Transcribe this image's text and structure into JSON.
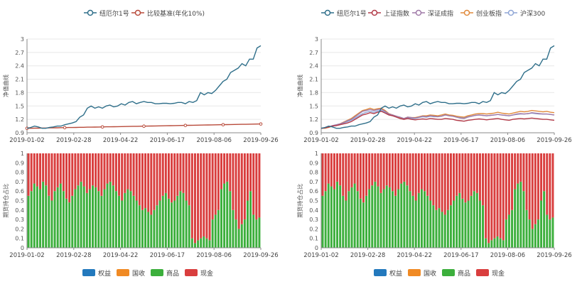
{
  "colors": {
    "nav_strategy": "#2f6f8a",
    "nav_benchmark": "#b84a3a",
    "index_sh": "#b23a48",
    "index_sz": "#a07aa8",
    "index_cyb": "#e08a3c",
    "index_hs300": "#8fa6d6",
    "equity": "#2379bd",
    "bond": "#f08a24",
    "commodity": "#3caf3c",
    "cash": "#d93e3e",
    "grid": "#e8e8e8",
    "axis": "#888888"
  },
  "chart_data": [
    {
      "type": "line",
      "ylabel": "净值曲线",
      "ylim": [
        0.9,
        3
      ],
      "y_ticks": [
        "0.9",
        "1.2",
        "1.5",
        "1.8",
        "2.1",
        "2.4",
        "2.7",
        "3"
      ],
      "x_ticks": [
        "2019-01-02",
        "2019-02-28",
        "2019-04-22",
        "2019-06-17",
        "2019-08-06",
        "2019-09-26"
      ],
      "legend": [
        "纽厄尔1号",
        "比较基准(年化10%)"
      ],
      "series": [
        {
          "name": "纽厄尔1号",
          "color_key": "nav_strategy",
          "values": [
            1.0,
            1.02,
            1.05,
            1.03,
            1.0,
            1.0,
            1.02,
            1.03,
            1.05,
            1.05,
            1.08,
            1.1,
            1.12,
            1.15,
            1.25,
            1.3,
            1.45,
            1.5,
            1.45,
            1.48,
            1.45,
            1.5,
            1.52,
            1.48,
            1.5,
            1.55,
            1.52,
            1.58,
            1.6,
            1.55,
            1.58,
            1.6,
            1.58,
            1.58,
            1.55,
            1.55,
            1.56,
            1.56,
            1.55,
            1.56,
            1.58,
            1.58,
            1.55,
            1.6,
            1.58,
            1.62,
            1.8,
            1.75,
            1.8,
            1.78,
            1.85,
            1.95,
            2.05,
            2.1,
            2.25,
            2.3,
            2.35,
            2.45,
            2.4,
            2.55,
            2.55,
            2.8,
            2.85
          ]
        },
        {
          "name": "比较基准(年化10%)",
          "color_key": "nav_benchmark",
          "values": [
            1.0,
            1.001,
            1.003,
            1.004,
            1.006,
            1.007,
            1.009,
            1.011,
            1.012,
            1.014,
            1.015,
            1.017,
            1.018,
            1.02,
            1.022,
            1.023,
            1.025,
            1.026,
            1.028,
            1.029,
            1.031,
            1.033,
            1.034,
            1.036,
            1.037,
            1.039,
            1.04,
            1.042,
            1.044,
            1.045,
            1.047,
            1.048,
            1.05,
            1.051,
            1.053,
            1.054,
            1.056,
            1.058,
            1.059,
            1.061,
            1.062,
            1.064,
            1.065,
            1.067,
            1.069,
            1.07,
            1.072,
            1.073,
            1.075,
            1.076,
            1.078,
            1.08,
            1.081,
            1.083,
            1.084,
            1.086,
            1.087,
            1.089,
            1.09,
            1.092,
            1.094,
            1.095,
            1.097
          ]
        }
      ]
    },
    {
      "type": "line",
      "ylabel": "净值曲线",
      "ylim": [
        0.9,
        3
      ],
      "y_ticks": [
        "0.9",
        "1.2",
        "1.5",
        "1.8",
        "2.1",
        "2.4",
        "2.7",
        "3"
      ],
      "x_ticks": [
        "2019-01-02",
        "2019-02-28",
        "2019-04-22",
        "2019-06-17",
        "2019-08-06",
        "2019-09-26"
      ],
      "legend": [
        "纽厄尔1号",
        "上证指数",
        "深证成指",
        "创业板指",
        "沪深300"
      ],
      "series": [
        {
          "name": "纽厄尔1号",
          "color_key": "nav_strategy",
          "values": [
            1.0,
            1.02,
            1.05,
            1.03,
            1.0,
            1.0,
            1.02,
            1.03,
            1.05,
            1.05,
            1.08,
            1.1,
            1.12,
            1.15,
            1.25,
            1.3,
            1.45,
            1.5,
            1.45,
            1.48,
            1.45,
            1.5,
            1.52,
            1.48,
            1.5,
            1.55,
            1.52,
            1.58,
            1.6,
            1.55,
            1.58,
            1.6,
            1.58,
            1.58,
            1.55,
            1.55,
            1.56,
            1.56,
            1.55,
            1.56,
            1.58,
            1.58,
            1.55,
            1.6,
            1.58,
            1.62,
            1.8,
            1.75,
            1.8,
            1.78,
            1.85,
            1.95,
            2.05,
            2.1,
            2.25,
            2.3,
            2.35,
            2.45,
            2.4,
            2.55,
            2.55,
            2.8,
            2.85
          ]
        },
        {
          "name": "上证指数",
          "color_key": "index_sh",
          "values": [
            1.0,
            1.01,
            1.03,
            1.05,
            1.06,
            1.08,
            1.1,
            1.12,
            1.15,
            1.2,
            1.25,
            1.3,
            1.32,
            1.35,
            1.33,
            1.36,
            1.38,
            1.34,
            1.3,
            1.28,
            1.25,
            1.22,
            1.2,
            1.22,
            1.2,
            1.19,
            1.2,
            1.21,
            1.2,
            1.22,
            1.21,
            1.2,
            1.2,
            1.22,
            1.21,
            1.2,
            1.18,
            1.17,
            1.16,
            1.18,
            1.19,
            1.2,
            1.21,
            1.2,
            1.19,
            1.2,
            1.21,
            1.22,
            1.2,
            1.19,
            1.18,
            1.2,
            1.21,
            1.22,
            1.21,
            1.22,
            1.23,
            1.22,
            1.21,
            1.2,
            1.2,
            1.19,
            1.18
          ]
        },
        {
          "name": "深证成指",
          "color_key": "index_sz",
          "values": [
            1.0,
            1.01,
            1.03,
            1.06,
            1.08,
            1.1,
            1.13,
            1.17,
            1.2,
            1.26,
            1.32,
            1.38,
            1.4,
            1.42,
            1.4,
            1.42,
            1.43,
            1.38,
            1.32,
            1.3,
            1.27,
            1.25,
            1.22,
            1.25,
            1.24,
            1.23,
            1.25,
            1.27,
            1.26,
            1.28,
            1.27,
            1.26,
            1.27,
            1.3,
            1.28,
            1.27,
            1.25,
            1.23,
            1.22,
            1.25,
            1.27,
            1.29,
            1.3,
            1.29,
            1.28,
            1.29,
            1.3,
            1.31,
            1.3,
            1.29,
            1.28,
            1.3,
            1.32,
            1.33,
            1.32,
            1.33,
            1.35,
            1.34,
            1.33,
            1.32,
            1.32,
            1.31,
            1.3
          ]
        },
        {
          "name": "创业板指",
          "color_key": "index_cyb",
          "values": [
            1.0,
            1.0,
            1.02,
            1.05,
            1.07,
            1.1,
            1.14,
            1.18,
            1.22,
            1.28,
            1.34,
            1.4,
            1.42,
            1.45,
            1.42,
            1.44,
            1.45,
            1.4,
            1.33,
            1.3,
            1.27,
            1.24,
            1.22,
            1.25,
            1.24,
            1.24,
            1.26,
            1.28,
            1.28,
            1.3,
            1.29,
            1.28,
            1.3,
            1.32,
            1.3,
            1.29,
            1.27,
            1.26,
            1.25,
            1.28,
            1.3,
            1.32,
            1.33,
            1.33,
            1.32,
            1.33,
            1.34,
            1.36,
            1.34,
            1.33,
            1.32,
            1.34,
            1.36,
            1.38,
            1.37,
            1.38,
            1.4,
            1.39,
            1.38,
            1.37,
            1.38,
            1.36,
            1.35
          ]
        },
        {
          "name": "沪深300",
          "color_key": "index_hs300",
          "values": [
            1.0,
            1.01,
            1.03,
            1.06,
            1.07,
            1.09,
            1.12,
            1.15,
            1.18,
            1.23,
            1.28,
            1.33,
            1.36,
            1.38,
            1.36,
            1.39,
            1.4,
            1.36,
            1.31,
            1.29,
            1.26,
            1.24,
            1.21,
            1.24,
            1.22,
            1.22,
            1.24,
            1.26,
            1.25,
            1.27,
            1.26,
            1.26,
            1.27,
            1.3,
            1.28,
            1.27,
            1.25,
            1.24,
            1.23,
            1.26,
            1.27,
            1.29,
            1.3,
            1.29,
            1.28,
            1.29,
            1.3,
            1.31,
            1.3,
            1.29,
            1.28,
            1.3,
            1.31,
            1.32,
            1.32,
            1.33,
            1.34,
            1.33,
            1.32,
            1.32,
            1.32,
            1.31,
            1.3
          ]
        }
      ]
    },
    {
      "type": "bar",
      "stacked": true,
      "ylabel": "期货持仓占比",
      "ylim": [
        0,
        1
      ],
      "y_ticks": [
        "0",
        "0.1",
        "0.2",
        "0.3",
        "0.4",
        "0.5",
        "0.6",
        "0.7",
        "0.8",
        "0.9",
        "1"
      ],
      "x_ticks": [
        "2019-01-02",
        "2019-02-28",
        "2019-04-22",
        "2019-06-17",
        "2019-08-06",
        "2019-09-26"
      ],
      "legend": [
        "权益",
        "国收",
        "商品",
        "现金"
      ],
      "commodity_share": [
        0.55,
        0.6,
        0.68,
        0.65,
        0.62,
        0.7,
        0.66,
        0.55,
        0.5,
        0.6,
        0.64,
        0.68,
        0.6,
        0.52,
        0.48,
        0.55,
        0.62,
        0.66,
        0.7,
        0.65,
        0.58,
        0.62,
        0.66,
        0.64,
        0.6,
        0.55,
        0.62,
        0.68,
        0.7,
        0.66,
        0.6,
        0.55,
        0.5,
        0.58,
        0.62,
        0.6,
        0.55,
        0.5,
        0.45,
        0.4,
        0.42,
        0.38,
        0.35,
        0.4,
        0.45,
        0.5,
        0.55,
        0.58,
        0.52,
        0.48,
        0.5,
        0.55,
        0.6,
        0.58,
        0.5,
        0.45,
        0.1,
        0.05,
        0.08,
        0.1,
        0.12,
        0.1,
        0.08,
        0.3,
        0.35,
        0.4,
        0.62,
        0.68,
        0.7,
        0.6,
        0.4,
        0.3,
        0.2,
        0.25,
        0.3,
        0.5,
        0.6,
        0.35,
        0.3,
        0.32
      ]
    },
    {
      "type": "bar",
      "stacked": true,
      "ylabel": "期货持仓占比",
      "ylim": [
        0,
        1
      ],
      "y_ticks": [
        "0",
        "0.1",
        "0.2",
        "0.3",
        "0.4",
        "0.5",
        "0.6",
        "0.7",
        "0.8",
        "0.9",
        "1"
      ],
      "x_ticks": [
        "2019-01-02",
        "2019-02-28",
        "2019-04-22",
        "2019-06-17",
        "2019-08-06",
        "2019-09-26"
      ],
      "legend": [
        "权益",
        "国收",
        "商品",
        "现金"
      ],
      "commodity_share": [
        0.55,
        0.6,
        0.68,
        0.65,
        0.62,
        0.7,
        0.66,
        0.55,
        0.5,
        0.6,
        0.64,
        0.68,
        0.6,
        0.52,
        0.48,
        0.55,
        0.62,
        0.66,
        0.7,
        0.65,
        0.58,
        0.62,
        0.66,
        0.64,
        0.6,
        0.55,
        0.62,
        0.68,
        0.7,
        0.66,
        0.6,
        0.55,
        0.5,
        0.58,
        0.62,
        0.6,
        0.55,
        0.5,
        0.45,
        0.4,
        0.42,
        0.38,
        0.35,
        0.4,
        0.45,
        0.5,
        0.55,
        0.58,
        0.52,
        0.48,
        0.5,
        0.55,
        0.6,
        0.58,
        0.5,
        0.45,
        0.1,
        0.05,
        0.08,
        0.1,
        0.12,
        0.1,
        0.08,
        0.3,
        0.35,
        0.4,
        0.62,
        0.68,
        0.7,
        0.6,
        0.4,
        0.3,
        0.2,
        0.25,
        0.3,
        0.5,
        0.6,
        0.35,
        0.3,
        0.32
      ]
    }
  ]
}
